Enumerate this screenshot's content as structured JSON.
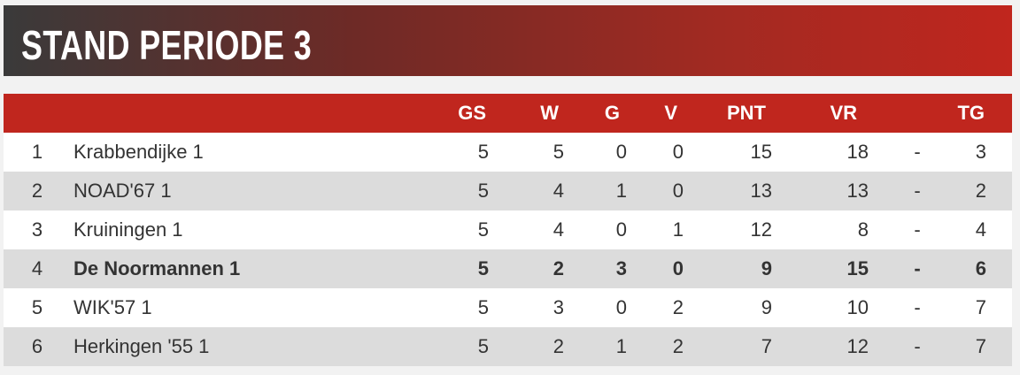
{
  "title": "STAND PERIODE 3",
  "table": {
    "header": [
      "GS",
      "W",
      "G",
      "V",
      "PNT",
      "VR",
      "TG"
    ],
    "rows": [
      [
        1,
        "Krabbendijke 1",
        5,
        5,
        0,
        0,
        15,
        18,
        "-",
        3
      ],
      [
        2,
        "NOAD'67 1",
        5,
        4,
        1,
        0,
        13,
        13,
        "-",
        2
      ],
      [
        3,
        "Kruiningen 1",
        5,
        4,
        0,
        1,
        12,
        8,
        "-",
        4
      ],
      [
        4,
        "De Noormannen 1",
        5,
        2,
        3,
        0,
        9,
        15,
        "-",
        6
      ],
      [
        5,
        "WIK'57 1",
        5,
        3,
        0,
        2,
        9,
        10,
        "-",
        7
      ],
      [
        6,
        "Herkingen '55 1",
        5,
        2,
        1,
        2,
        7,
        12,
        "-",
        7
      ]
    ],
    "bold_row": 3
  }
}
